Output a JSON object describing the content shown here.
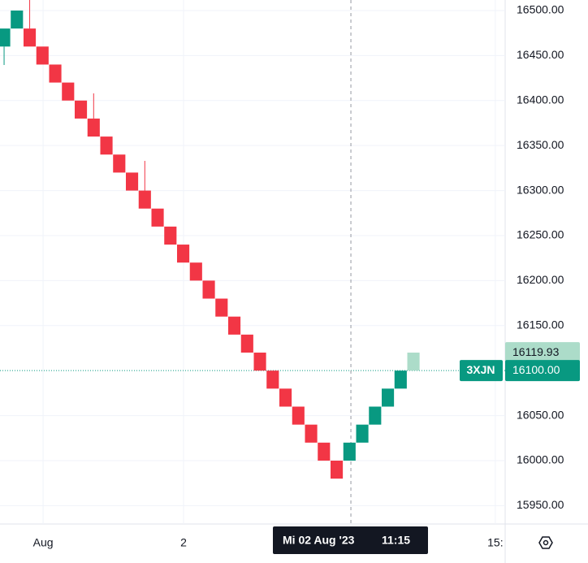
{
  "chart_data": {
    "type": "renko",
    "symbol": "3XJN",
    "colors": {
      "up": "#089981",
      "down": "#f23645",
      "ghost": "#acdcc9"
    },
    "ylim": [
      15929.6,
      16511.7
    ],
    "xlim": [
      -0.32,
      39.17
    ],
    "yticks": [
      {
        "value": 16500,
        "label": "16500.00"
      },
      {
        "value": 16450,
        "label": "16450.00"
      },
      {
        "value": 16400,
        "label": "16400.00"
      },
      {
        "value": 16350,
        "label": "16350.00"
      },
      {
        "value": 16300,
        "label": "16300.00"
      },
      {
        "value": 16250,
        "label": "16250.00"
      },
      {
        "value": 16200,
        "label": "16200.00"
      },
      {
        "value": 16150,
        "label": "16150.00"
      },
      {
        "value": 16050,
        "label": "16050.00"
      },
      {
        "value": 16000,
        "label": "16000.00"
      },
      {
        "value": 15950,
        "label": "15950.00"
      }
    ],
    "xticks": [
      {
        "value": 3.05,
        "label": "Aug"
      },
      {
        "value": 14.03,
        "label": "2"
      },
      {
        "value": 38.4,
        "label": "15:"
      }
    ],
    "crosshair": {
      "x": 27.11,
      "date": "Mi 02 Aug '23",
      "time": "11:15"
    },
    "last_price": {
      "value": 16100,
      "label": "16100.00"
    },
    "current_price": {
      "value": 16119.93,
      "label": "16119.93"
    },
    "bricks": [
      {
        "open": 16460,
        "close": 16480,
        "low": 16439.5
      },
      {
        "open": 16480,
        "close": 16500
      },
      {
        "open": 16480,
        "close": 16460,
        "high": 16512
      },
      {
        "open": 16460,
        "close": 16440
      },
      {
        "open": 16440,
        "close": 16420
      },
      {
        "open": 16420,
        "close": 16400
      },
      {
        "open": 16400,
        "close": 16380
      },
      {
        "open": 16380,
        "close": 16360,
        "high": 16408
      },
      {
        "open": 16360,
        "close": 16340
      },
      {
        "open": 16340,
        "close": 16320
      },
      {
        "open": 16320,
        "close": 16300
      },
      {
        "open": 16300,
        "close": 16280,
        "high": 16333
      },
      {
        "open": 16280,
        "close": 16260
      },
      {
        "open": 16260,
        "close": 16240
      },
      {
        "open": 16240,
        "close": 16220
      },
      {
        "open": 16220,
        "close": 16200
      },
      {
        "open": 16200,
        "close": 16180
      },
      {
        "open": 16180,
        "close": 16160
      },
      {
        "open": 16160,
        "close": 16140
      },
      {
        "open": 16140,
        "close": 16120
      },
      {
        "open": 16120,
        "close": 16100
      },
      {
        "open": 16100,
        "close": 16080
      },
      {
        "open": 16080,
        "close": 16060
      },
      {
        "open": 16060,
        "close": 16040
      },
      {
        "open": 16040,
        "close": 16020
      },
      {
        "open": 16020,
        "close": 16000
      },
      {
        "open": 16000,
        "close": 15980
      },
      {
        "open": 16000,
        "close": 16020
      },
      {
        "open": 16020,
        "close": 16040
      },
      {
        "open": 16040,
        "close": 16060
      },
      {
        "open": 16060,
        "close": 16080
      },
      {
        "open": 16080,
        "close": 16100
      },
      {
        "open": 16100,
        "close": 16120,
        "ghost": true
      }
    ]
  }
}
